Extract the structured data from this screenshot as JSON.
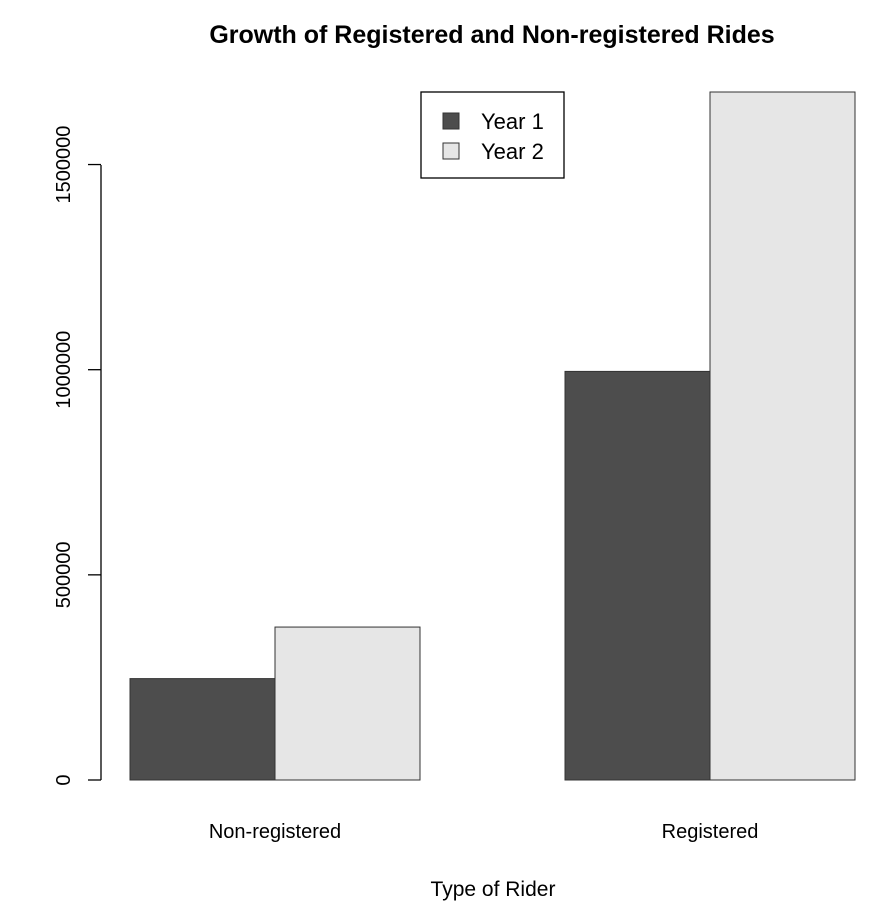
{
  "chart_data": {
    "type": "bar",
    "title": "Growth of Registered and Non-registered Rides",
    "xlabel": "Type of Rider",
    "ylabel": "",
    "categories": [
      "Non-registered",
      "Registered"
    ],
    "series": [
      {
        "name": "Year 1",
        "values": [
          247123,
          995851
        ],
        "color": "#4d4d4d"
      },
      {
        "name": "Year 2",
        "values": [
          372765,
          1676811
        ],
        "color": "#e6e6e6"
      }
    ],
    "ylim": [
      0,
      1676811
    ],
    "yticks": [
      0,
      500000,
      1000000,
      1500000
    ],
    "ytick_labels": [
      "0",
      "500000",
      "1000000",
      "1500000"
    ],
    "legend_position": "top-center",
    "grid": false
  }
}
